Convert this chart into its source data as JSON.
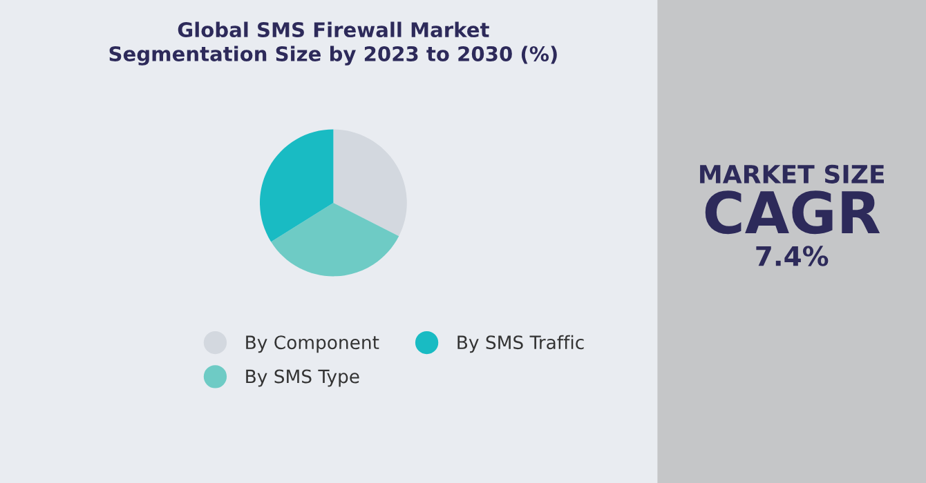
{
  "chart_data": [
    {
      "type": "pie",
      "title": "Global SMS Firewall Market\nSegmentation Size by 2023 to 2030 (%)",
      "categories": [
        "By Component",
        "By SMS Type",
        "By SMS Traffic"
      ],
      "values": [
        32.5,
        33.6,
        33.9
      ],
      "colors": [
        "#d3d8df",
        "#6ecbc5",
        "#19bbc3"
      ],
      "legend": "bottom"
    },
    {
      "type": "other",
      "annotations": [
        "MARKET SIZE",
        "CAGR",
        "7.4%"
      ]
    }
  ]
}
